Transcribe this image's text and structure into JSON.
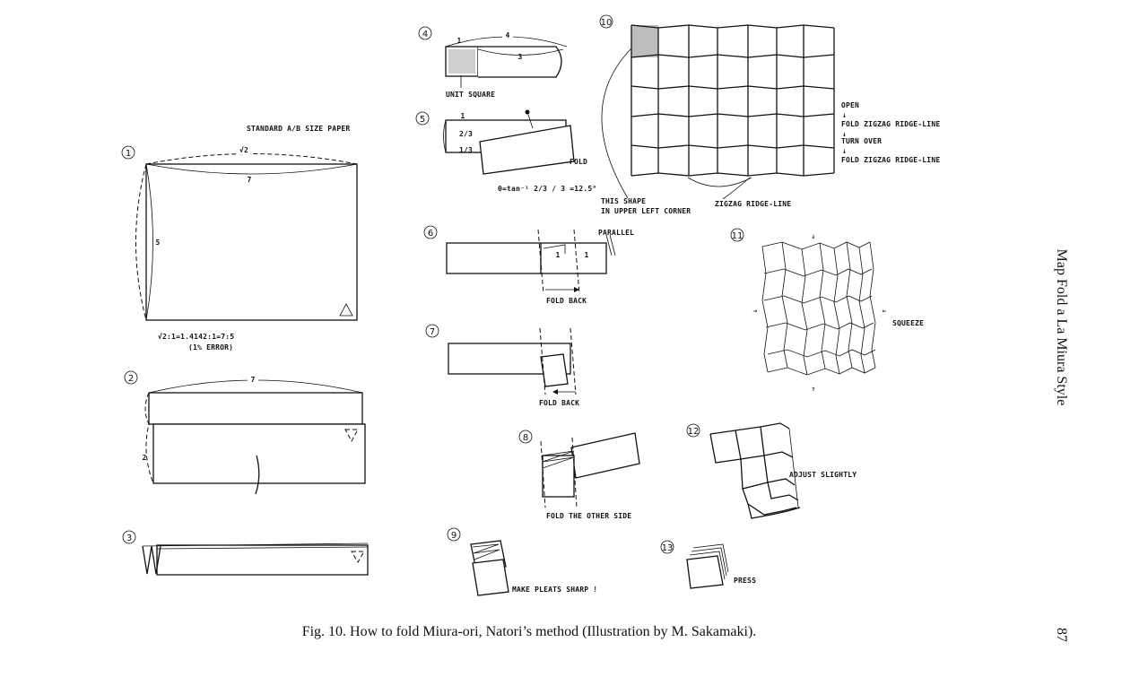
{
  "steps": [
    {
      "number": "1",
      "labels": {
        "header": "STANDARD A/B SIZE PAPER",
        "top": "√2",
        "width": "7",
        "height": "5",
        "ratio": "√2:1=1.4142:1=7:5",
        "error": "(1% ERROR)"
      }
    },
    {
      "number": "2",
      "labels": {
        "width": "7",
        "height": "2"
      }
    },
    {
      "number": "3",
      "labels": {}
    },
    {
      "number": "4",
      "labels": {
        "one": "1",
        "four": "4",
        "three": "3",
        "unit": "UNIT SQUARE"
      }
    },
    {
      "number": "5",
      "labels": {
        "one": "1",
        "two_thirds": "2/3",
        "one_third": "1/3",
        "fold": "FOLD",
        "formula": "θ=tan⁻¹ 2/3 / 3 =12.5°"
      }
    },
    {
      "number": "6",
      "labels": {
        "parallel": "PARALLEL",
        "fold_back": "FOLD BACK",
        "one": "1"
      }
    },
    {
      "number": "7",
      "labels": {
        "fold_back": "FOLD BACK"
      }
    },
    {
      "number": "8",
      "labels": {
        "fold_other": "FOLD THE OTHER SIDE"
      }
    },
    {
      "number": "9",
      "labels": {
        "pleats": "MAKE PLEATS SHARP !"
      }
    },
    {
      "number": "10",
      "labels": {
        "open": "OPEN",
        "fold_zigzag_1": "FOLD ZIGZAG RIDGE-LINE",
        "turn_over": "TURN OVER",
        "fold_zigzag_2": "FOLD ZIGZAG RIDGE-LINE",
        "this_shape": "THIS SHAPE",
        "upper_left": "IN UPPER LEFT CORNER",
        "zigzag": "ZIGZAG RIDGE-LINE"
      }
    },
    {
      "number": "11",
      "labels": {
        "squeeze": "SQUEEZE"
      }
    },
    {
      "number": "12",
      "labels": {
        "adjust": "ADJUST SLIGHTLY"
      }
    },
    {
      "number": "13",
      "labels": {
        "press": "PRESS"
      }
    }
  ],
  "caption": "Fig. 10.  How to fold Miura-ori, Natori’s method (Illustration by M. Sakamaki).",
  "side_title": "Map Fold a La Miura Style",
  "page_number": "87"
}
